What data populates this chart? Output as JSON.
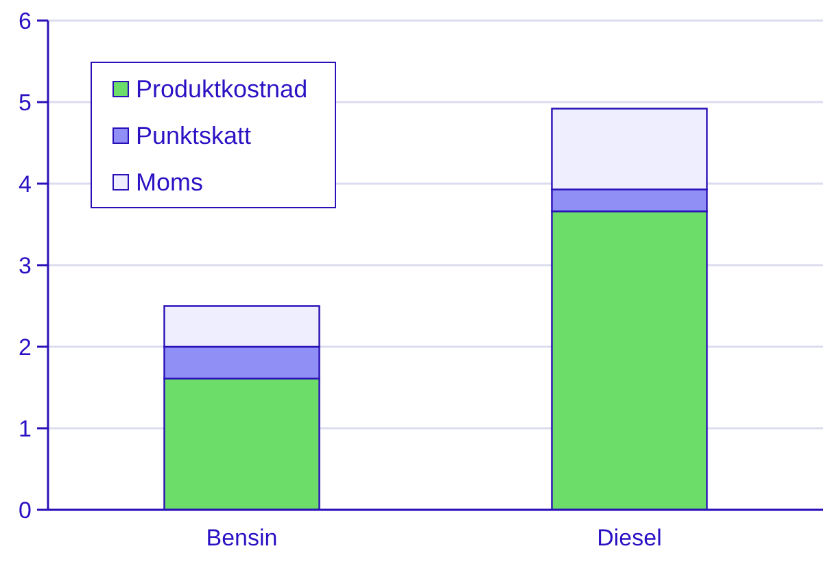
{
  "chart_data": {
    "type": "bar",
    "stacked": true,
    "categories": [
      "Bensin",
      "Diesel"
    ],
    "series": [
      {
        "name": "Produktkostnad",
        "color": "#6ddd6a",
        "values": [
          1.61,
          3.66
        ]
      },
      {
        "name": "Punktskatt",
        "color": "#8f8ff5",
        "values": [
          0.39,
          0.27
        ]
      },
      {
        "name": "Moms",
        "color": "#eeeefe",
        "values": [
          0.5,
          0.99
        ]
      }
    ],
    "ylim": [
      0,
      6
    ],
    "yticks": [
      0,
      1,
      2,
      3,
      4,
      5,
      6
    ],
    "grid": "y",
    "legend": "top left"
  }
}
